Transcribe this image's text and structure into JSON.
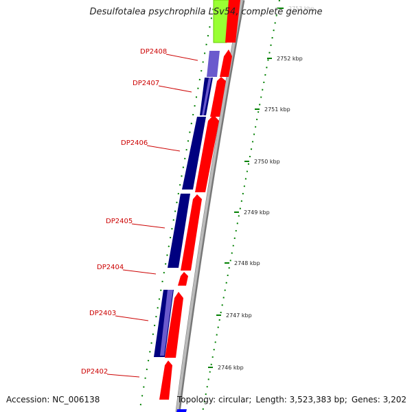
{
  "title": "Desulfotalea psychrophila LSv54, complete genome",
  "footer": {
    "accession_label": "Accession:",
    "accession": "NC_006138",
    "topology_label": "Topology:",
    "topology": "circular;",
    "length_label": "Length:",
    "length": "3,523,383 bp;",
    "genes_label": "Genes:",
    "genes": "3,202"
  },
  "scale": {
    "ticks": [
      "2753 kbp",
      "2752 kbp",
      "2751 kbp",
      "2750 kbp",
      "2749 kbp",
      "2748 kbp",
      "2747 kbp",
      "2746 kbp"
    ]
  },
  "genes": [
    {
      "label": "DP2408",
      "strand": "reverse"
    },
    {
      "label": "DP2407",
      "strand": "reverse"
    },
    {
      "label": "DP2406",
      "strand": "reverse"
    },
    {
      "label": "DP2405",
      "strand": "reverse"
    },
    {
      "label": "DP2404",
      "strand": "forward"
    },
    {
      "label": "DP2403",
      "strand": "reverse"
    },
    {
      "label": "DP2402",
      "strand": "forward"
    }
  ],
  "colors": {
    "cds_forward": "#ff0000",
    "cds_reverse": "#000080",
    "cds_reverse_light": "#6a5acd",
    "highlight": "#99ff33",
    "backbone": "#999999",
    "ticks": "#008000",
    "gene_label": "#cc0000"
  }
}
